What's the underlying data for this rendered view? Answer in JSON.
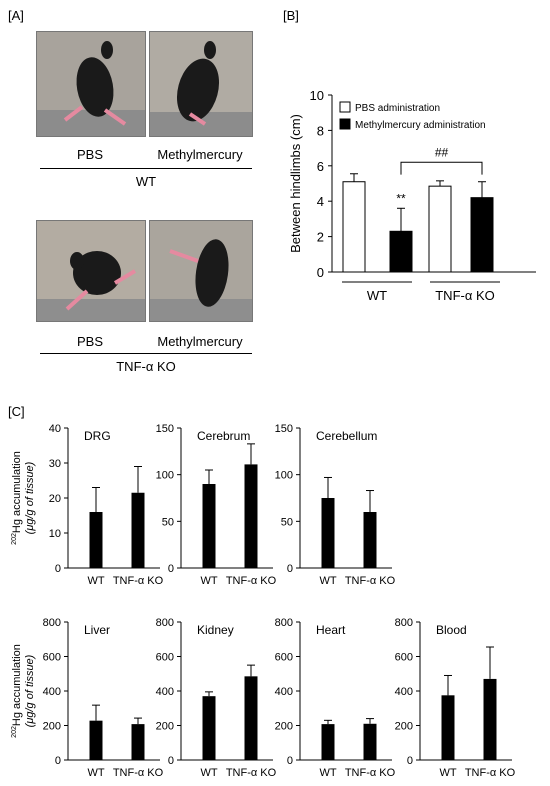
{
  "panel_a": {
    "label": "[A]",
    "wt": {
      "col1": "PBS",
      "col2": "Methylmercury",
      "group": "WT"
    },
    "ko": {
      "col1": "PBS",
      "col2": "Methylmercury",
      "group": "TNF-α KO"
    }
  },
  "panel_b": {
    "label": "[B]"
  },
  "panel_c": {
    "label": "[C]",
    "ylabel_sup": "202",
    "ylabel_line1": "Hg accumulation",
    "ylabel_line2": "(μg/g of tissue)"
  },
  "colors": {
    "fill_black": "#000000",
    "fill_white": "#ffffff",
    "axis": "#000000",
    "photo_bg": "#9a9a9a",
    "mouse": "#1a1a1a",
    "paw": "#e58aa0"
  },
  "chart_data": [
    {
      "id": "B",
      "type": "bar",
      "ylabel": "Between hindlimbs (cm)",
      "ylim": [
        0,
        10
      ],
      "yticks": [
        0,
        2,
        4,
        6,
        8,
        10
      ],
      "groups": [
        "WT",
        "TNF-α KO"
      ],
      "series": [
        {
          "name": "PBS administration",
          "color": "white",
          "values": [
            5.1,
            4.85
          ],
          "errors": [
            0.45,
            0.3
          ]
        },
        {
          "name": "Methylmercury administration",
          "color": "black",
          "values": [
            2.3,
            4.2
          ],
          "errors": [
            1.3,
            0.9
          ]
        }
      ],
      "annotations": [
        "**",
        "##"
      ],
      "legend": "top-left"
    },
    {
      "id": "DRG",
      "type": "bar",
      "title": "DRG",
      "categories": [
        "WT",
        "TNF-α KO"
      ],
      "values": [
        16,
        21.5
      ],
      "errors": [
        7,
        7.5
      ],
      "ylim": [
        0,
        40
      ],
      "yticks": [
        0,
        10,
        20,
        30,
        40
      ]
    },
    {
      "id": "Cerebrum",
      "type": "bar",
      "title": "Cerebrum",
      "categories": [
        "WT",
        "TNF-α KO"
      ],
      "values": [
        90,
        111
      ],
      "errors": [
        15,
        22
      ],
      "ylim": [
        0,
        150
      ],
      "yticks": [
        0,
        50,
        100,
        150
      ]
    },
    {
      "id": "Cerebellum",
      "type": "bar",
      "title": "Cerebellum",
      "categories": [
        "WT",
        "TNF-α KO"
      ],
      "values": [
        75,
        60
      ],
      "errors": [
        22,
        23
      ],
      "ylim": [
        0,
        150
      ],
      "yticks": [
        0,
        50,
        100,
        150
      ]
    },
    {
      "id": "Liver",
      "type": "bar",
      "title": "Liver",
      "categories": [
        "WT",
        "TNF-α KO"
      ],
      "values": [
        228,
        208
      ],
      "errors": [
        90,
        35
      ],
      "ylim": [
        0,
        800
      ],
      "yticks": [
        0,
        200,
        400,
        600,
        800
      ]
    },
    {
      "id": "Kidney",
      "type": "bar",
      "title": "Kidney",
      "categories": [
        "WT",
        "TNF-α KO"
      ],
      "values": [
        370,
        485
      ],
      "errors": [
        25,
        65
      ],
      "ylim": [
        0,
        800
      ],
      "yticks": [
        0,
        200,
        400,
        600,
        800
      ]
    },
    {
      "id": "Heart",
      "type": "bar",
      "title": "Heart",
      "categories": [
        "WT",
        "TNF-α KO"
      ],
      "values": [
        208,
        210
      ],
      "errors": [
        22,
        30
      ],
      "ylim": [
        0,
        800
      ],
      "yticks": [
        0,
        200,
        400,
        600,
        800
      ]
    },
    {
      "id": "Blood",
      "type": "bar",
      "title": "Blood",
      "categories": [
        "WT",
        "TNF-α KO"
      ],
      "values": [
        375,
        470
      ],
      "errors": [
        115,
        185
      ],
      "ylim": [
        0,
        800
      ],
      "yticks": [
        0,
        200,
        400,
        600,
        800
      ]
    }
  ]
}
